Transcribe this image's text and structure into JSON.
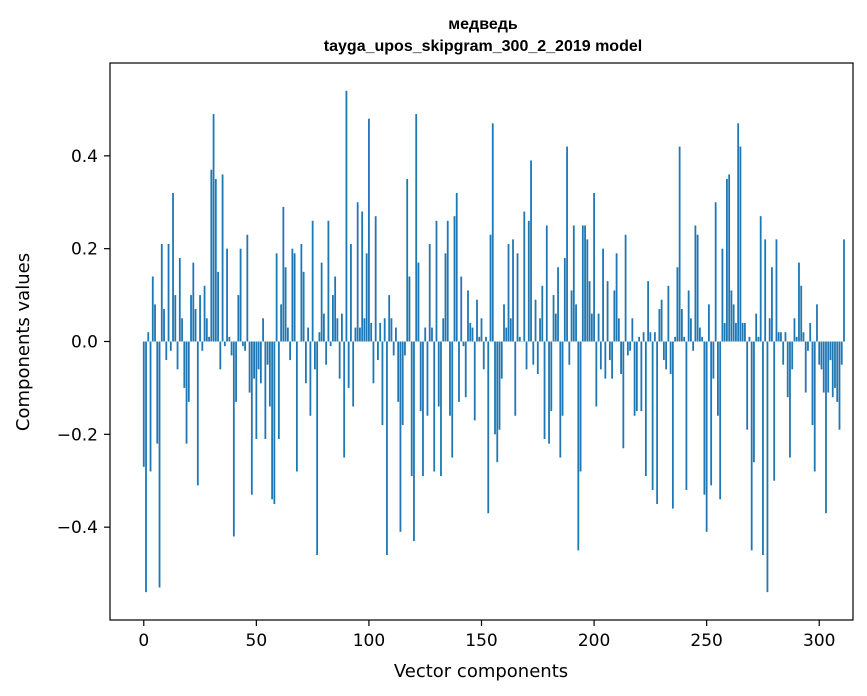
{
  "chart_data": {
    "type": "bar",
    "title": "медведь",
    "subtitle": "tayga_upos_skipgram_300_2_2019 model",
    "xlabel": "Vector components",
    "ylabel": "Components values",
    "xlim": [
      -15,
      315
    ],
    "ylim": [
      -0.6,
      0.6
    ],
    "xticks": [
      0,
      50,
      100,
      150,
      200,
      250,
      300
    ],
    "yticks": [
      0.4,
      0.2,
      0.0,
      -0.2,
      -0.4
    ],
    "ytick_labels": [
      "0.4",
      "0.2",
      "0.0",
      "−0.2",
      "−0.4"
    ],
    "bar_color": "#1f77b4",
    "values": [
      -0.27,
      -0.54,
      0.02,
      -0.28,
      0.14,
      0.08,
      -0.22,
      -0.53,
      0.21,
      0.07,
      -0.04,
      0.21,
      -0.02,
      0.32,
      0.1,
      -0.06,
      0.18,
      0.05,
      -0.1,
      -0.22,
      -0.13,
      0.1,
      0.17,
      0.07,
      -0.31,
      0.1,
      -0.02,
      0.12,
      0.05,
      0.01,
      0.37,
      0.49,
      0.35,
      0.15,
      -0.06,
      0.36,
      -0.01,
      0.2,
      0.01,
      -0.03,
      -0.42,
      -0.13,
      0.1,
      0.2,
      -0.01,
      -0.02,
      0.23,
      -0.11,
      -0.33,
      -0.08,
      -0.21,
      -0.06,
      -0.09,
      0.05,
      -0.21,
      -0.05,
      -0.14,
      -0.34,
      -0.35,
      0.19,
      -0.21,
      0.08,
      0.29,
      0.16,
      0.03,
      -0.04,
      0.2,
      0.19,
      -0.28,
      0.0,
      0.21,
      0.15,
      -0.09,
      0.03,
      -0.16,
      0.26,
      -0.06,
      -0.46,
      0.02,
      0.17,
      0.06,
      -0.05,
      0.26,
      -0.01,
      0.1,
      0.14,
      0.05,
      -0.08,
      0.06,
      -0.25,
      0.54,
      -0.1,
      0.21,
      -0.14,
      0.03,
      0.3,
      0.03,
      0.28,
      0.05,
      0.19,
      0.48,
      0.04,
      -0.09,
      0.27,
      -0.04,
      0.04,
      -0.18,
      0.05,
      -0.46,
      0.1,
      0.05,
      -0.03,
      0.03,
      -0.13,
      -0.41,
      -0.18,
      -0.03,
      0.35,
      0.14,
      -0.29,
      -0.43,
      0.49,
      0.17,
      -0.15,
      -0.29,
      0.03,
      -0.16,
      0.21,
      0.03,
      -0.28,
      0.26,
      -0.14,
      -0.29,
      0.05,
      0.19,
      0.26,
      -0.16,
      -0.25,
      0.27,
      0.32,
      -0.13,
      0.14,
      -0.01,
      -0.12,
      0.11,
      0.04,
      0.03,
      -0.17,
      0.09,
      0.01,
      0.05,
      -0.06,
      0.01,
      -0.37,
      0.23,
      0.47,
      -0.2,
      -0.26,
      -0.19,
      -0.08,
      0.08,
      0.03,
      0.21,
      0.05,
      0.22,
      -0.16,
      0.19,
      0.01,
      0.0,
      0.28,
      -0.06,
      0.26,
      0.39,
      -0.05,
      0.09,
      -0.07,
      0.05,
      0.12,
      -0.21,
      0.25,
      -0.22,
      -0.15,
      0.1,
      0.06,
      0.16,
      -0.25,
      -0.16,
      0.18,
      0.42,
      -0.05,
      0.11,
      0.25,
      0.08,
      -0.45,
      -0.28,
      0.25,
      0.25,
      0.22,
      0.13,
      0.06,
      0.32,
      -0.14,
      0.06,
      -0.06,
      0.2,
      -0.08,
      0.13,
      -0.04,
      -0.08,
      0.11,
      0.19,
      0.05,
      -0.07,
      -0.23,
      0.23,
      -0.03,
      -0.02,
      0.05,
      -0.16,
      -0.15,
      0.01,
      -0.15,
      0.02,
      -0.29,
      0.13,
      0.02,
      -0.32,
      0.02,
      -0.35,
      0.07,
      0.09,
      -0.04,
      -0.06,
      0.12,
      -0.07,
      -0.36,
      0.01,
      0.16,
      0.42,
      0.07,
      0.01,
      -0.32,
      0.11,
      0.05,
      -0.02,
      0.25,
      0.23,
      0.03,
      0.01,
      -0.33,
      -0.41,
      0.08,
      -0.31,
      -0.08,
      0.3,
      -0.16,
      -0.34,
      0.2,
      0.04,
      0.35,
      0.36,
      0.11,
      0.08,
      0.04,
      0.47,
      0.42,
      0.04,
      0.04,
      -0.19,
      0.01,
      -0.45,
      -0.26,
      0.06,
      0.01,
      0.27,
      -0.46,
      0.22,
      -0.54,
      0.05,
      0.16,
      -0.3,
      0.22,
      0.02,
      0.02,
      -0.05,
      0.02,
      -0.12,
      -0.25,
      -0.06,
      0.05,
      0.01,
      0.17,
      0.12,
      0.02,
      -0.11,
      -0.02,
      0.04,
      -0.18,
      -0.28,
      0.08,
      -0.05,
      -0.06,
      -0.11,
      -0.37,
      -0.11,
      -0.04,
      -0.12,
      -0.1,
      -0.13,
      -0.19,
      -0.05,
      0.22
    ]
  }
}
